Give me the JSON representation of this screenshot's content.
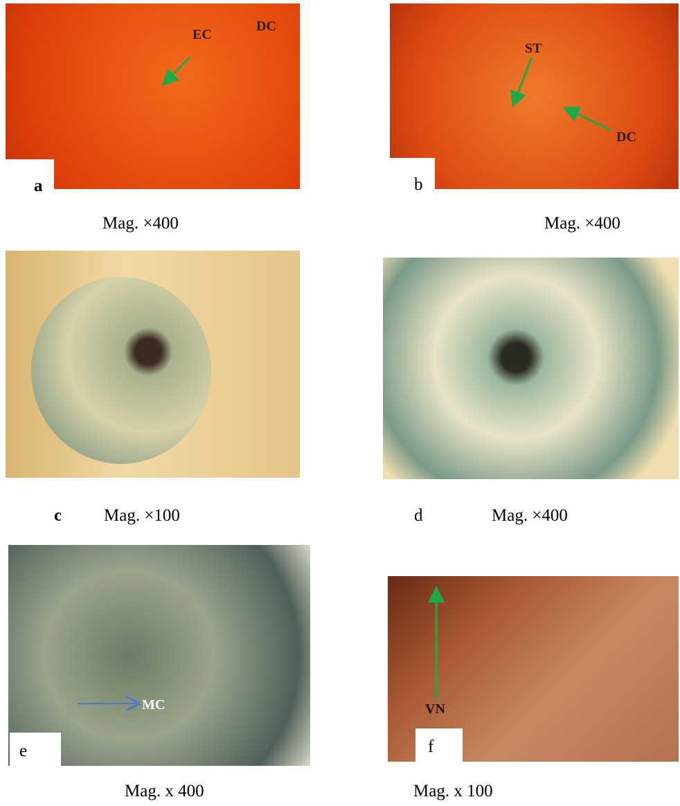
{
  "panels": [
    {
      "label": "a",
      "caption": "Mag. ×400",
      "annotations": [
        "EC",
        "DC"
      ]
    },
    {
      "label": "b",
      "caption": "Mag. ×400",
      "annotations": [
        "ST",
        "DC"
      ]
    },
    {
      "label": "c",
      "caption": "Mag. ×100",
      "annotations": []
    },
    {
      "label": "d",
      "caption": "Mag. ×400",
      "annotations": []
    },
    {
      "label": "e",
      "caption": "Mag. x 400",
      "annotations": [
        "MC"
      ]
    },
    {
      "label": "f",
      "caption": "Mag. x 100",
      "annotations": [
        "VN"
      ]
    }
  ]
}
